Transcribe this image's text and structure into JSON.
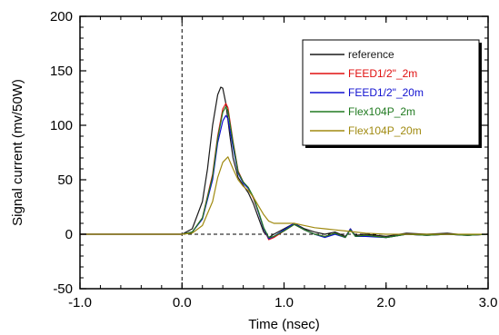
{
  "chart_data": {
    "type": "line",
    "title": "",
    "xlabel": "Time (nsec)",
    "ylabel": "Signal current (mv/50W)",
    "xlim": [
      -1.0,
      3.0
    ],
    "ylim": [
      -50,
      200
    ],
    "xticks": [
      -1.0,
      0.0,
      1.0,
      2.0,
      3.0
    ],
    "xtick_labels": [
      "-1.0",
      "0.0",
      "1.0",
      "2.0",
      "3.0"
    ],
    "yticks": [
      -50,
      0,
      50,
      100,
      150,
      200
    ],
    "ytick_labels": [
      "-50",
      "0",
      "50",
      "100",
      "150",
      "200"
    ],
    "grid": false,
    "reference_lines": [
      {
        "orientation": "vertical",
        "x": 0.0,
        "style": "dashed"
      },
      {
        "orientation": "horizontal",
        "y": 0,
        "style": "dashed"
      }
    ],
    "legend": {
      "placement": "top-right"
    },
    "series": [
      {
        "name": "reference",
        "color": "#1a1a1a",
        "x": [
          -1.0,
          0.0,
          0.1,
          0.2,
          0.25,
          0.3,
          0.35,
          0.38,
          0.4,
          0.43,
          0.47,
          0.5,
          0.55,
          0.6,
          0.65,
          0.7,
          0.75,
          0.8,
          0.85,
          0.9,
          1.0,
          1.1,
          1.2,
          1.3,
          1.4,
          1.5,
          1.6,
          1.65,
          1.7,
          1.8,
          2.0,
          2.2,
          2.4,
          2.6,
          2.8,
          3.0
        ],
        "y": [
          0,
          0,
          5,
          30,
          60,
          100,
          128,
          135,
          134,
          120,
          90,
          70,
          52,
          45,
          38,
          28,
          15,
          2,
          -3,
          0,
          5,
          10,
          5,
          2,
          0,
          2,
          -2,
          4,
          -1,
          0,
          -2,
          1,
          0,
          1,
          -1,
          0
        ]
      },
      {
        "name": "FEED1/2\"_2m",
        "color": "#e01010",
        "x": [
          -1.0,
          0.0,
          0.1,
          0.2,
          0.3,
          0.35,
          0.4,
          0.43,
          0.45,
          0.5,
          0.55,
          0.6,
          0.65,
          0.7,
          0.75,
          0.8,
          0.85,
          0.9,
          1.0,
          1.1,
          1.2,
          1.3,
          1.4,
          1.5,
          1.6,
          1.65,
          1.7,
          1.8,
          2.0,
          2.2,
          2.4,
          2.6,
          2.8,
          3.0
        ],
        "y": [
          0,
          0,
          2,
          15,
          55,
          90,
          115,
          120,
          116,
          85,
          58,
          48,
          42,
          33,
          20,
          5,
          -5,
          -3,
          3,
          9,
          4,
          0,
          -2,
          1,
          -3,
          5,
          -2,
          -1,
          -3,
          0,
          -1,
          0,
          -1,
          0
        ]
      },
      {
        "name": "FEED1/2\"_20m",
        "color": "#1010d0",
        "x": [
          -1.0,
          0.0,
          0.1,
          0.2,
          0.3,
          0.35,
          0.4,
          0.43,
          0.45,
          0.5,
          0.55,
          0.6,
          0.65,
          0.7,
          0.75,
          0.8,
          0.85,
          0.9,
          1.0,
          1.1,
          1.2,
          1.3,
          1.4,
          1.5,
          1.6,
          1.65,
          1.7,
          1.8,
          2.0,
          2.2,
          2.4,
          2.6,
          2.8,
          3.0
        ],
        "y": [
          0,
          0,
          2,
          14,
          50,
          84,
          104,
          109,
          106,
          80,
          56,
          47,
          42,
          34,
          20,
          5,
          -4,
          -2,
          4,
          10,
          4,
          0,
          -3,
          0,
          -3,
          5,
          -2,
          -2,
          -3,
          0,
          -1,
          0,
          -1,
          0
        ]
      },
      {
        "name": "Flex104P_2m",
        "color": "#207a20",
        "x": [
          -1.0,
          0.0,
          0.1,
          0.2,
          0.3,
          0.35,
          0.4,
          0.43,
          0.45,
          0.5,
          0.55,
          0.6,
          0.65,
          0.7,
          0.75,
          0.8,
          0.85,
          0.9,
          1.0,
          1.1,
          1.2,
          1.3,
          1.4,
          1.5,
          1.6,
          1.65,
          1.7,
          1.8,
          2.0,
          2.2,
          2.4,
          2.6,
          2.8,
          3.0
        ],
        "y": [
          0,
          0,
          2,
          15,
          53,
          88,
          112,
          117,
          113,
          84,
          57,
          48,
          43,
          34,
          21,
          6,
          -3,
          -2,
          3,
          9,
          4,
          0,
          -2,
          1,
          -3,
          4,
          -2,
          -1,
          -3,
          0,
          -1,
          0,
          -1,
          0
        ]
      },
      {
        "name": "Flex104P_20m",
        "color": "#a08a10",
        "x": [
          -1.0,
          0.0,
          0.1,
          0.2,
          0.3,
          0.35,
          0.4,
          0.45,
          0.5,
          0.55,
          0.6,
          0.65,
          0.7,
          0.75,
          0.8,
          0.85,
          0.9,
          1.0,
          1.1,
          1.2,
          1.3,
          1.4,
          1.5,
          1.6,
          1.7,
          1.8,
          2.0,
          2.2,
          2.4,
          2.6,
          2.8,
          3.0
        ],
        "y": [
          0,
          0,
          1,
          8,
          30,
          52,
          66,
          71,
          60,
          50,
          44,
          40,
          34,
          26,
          18,
          12,
          10,
          10,
          10,
          8,
          6,
          5,
          4,
          3,
          2,
          1,
          0,
          0,
          0,
          0,
          0,
          0
        ]
      }
    ]
  }
}
